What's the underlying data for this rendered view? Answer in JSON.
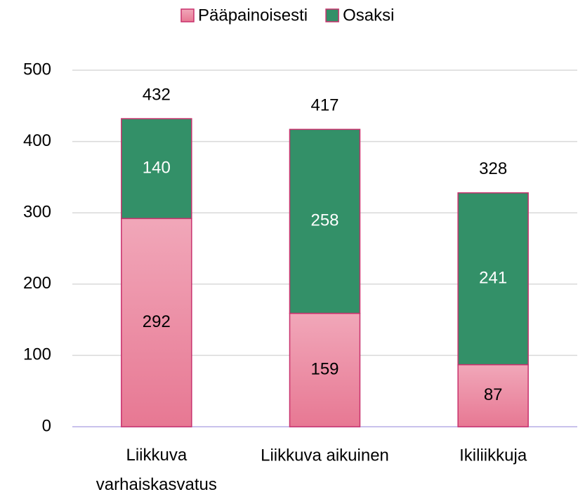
{
  "chart_data": {
    "type": "stacked_bar",
    "categories": [
      "Liikkuva varhaiskasvatus",
      "Liikkuva aikuinen",
      "Ikiliikkuja"
    ],
    "series": [
      {
        "name": "Pääpainoisesti",
        "color": "#eb8ea5",
        "values": [
          292,
          159,
          87
        ]
      },
      {
        "name": "Osaksi",
        "color": "#339068",
        "values": [
          140,
          258,
          241
        ]
      }
    ],
    "totals": [
      432,
      417,
      328
    ],
    "ylim": [
      0,
      500
    ],
    "yticks": [
      0,
      100,
      200,
      300,
      400,
      500
    ],
    "grid": true,
    "legend": "top"
  }
}
